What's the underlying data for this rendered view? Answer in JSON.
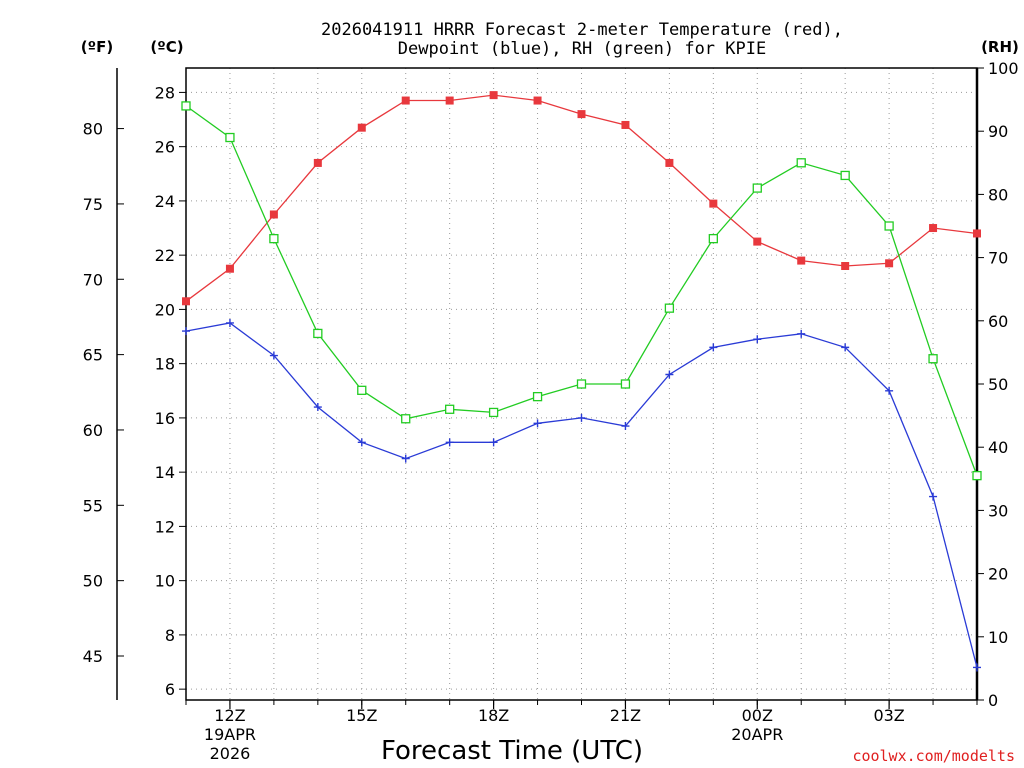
{
  "chart_data": {
    "type": "line",
    "title_line1": "2026041911 HRRR Forecast 2-meter Temperature (red),",
    "title_line2": "Dewpoint (blue), RH (green) for KPIE",
    "xlabel": "Forecast Time (UTC)",
    "credit": "coolwx.com/modelts",
    "units": {
      "fahrenheit": "(ºF)",
      "celsius": "(ºC)",
      "rh": "(RH)"
    },
    "x": [
      11,
      12,
      13,
      14,
      15,
      16,
      17,
      18,
      19,
      20,
      21,
      22,
      23,
      24,
      25,
      26,
      27,
      28,
      29
    ],
    "xlim": [
      11,
      29
    ],
    "x_ticks": [
      {
        "x": 12,
        "label": "12Z",
        "sub1": "19APR",
        "sub2": "2026"
      },
      {
        "x": 15,
        "label": "15Z",
        "sub1": "",
        "sub2": ""
      },
      {
        "x": 18,
        "label": "18Z",
        "sub1": "",
        "sub2": ""
      },
      {
        "x": 21,
        "label": "21Z",
        "sub1": "",
        "sub2": ""
      },
      {
        "x": 24,
        "label": "00Z",
        "sub1": "20APR",
        "sub2": ""
      },
      {
        "x": 27,
        "label": "03Z",
        "sub1": "",
        "sub2": ""
      }
    ],
    "y_celsius": {
      "lim": [
        5.6,
        28.9
      ],
      "ticks": [
        6,
        8,
        10,
        12,
        14,
        16,
        18,
        20,
        22,
        24,
        26,
        28
      ]
    },
    "y_fahrenheit": {
      "ticks": [
        45,
        50,
        55,
        60,
        65,
        70,
        75,
        80
      ]
    },
    "y_rh": {
      "lim": [
        0,
        100
      ],
      "ticks": [
        0,
        10,
        20,
        30,
        40,
        50,
        60,
        70,
        80,
        90,
        100
      ]
    },
    "series": [
      {
        "name": "Temperature",
        "color": "#e8383d",
        "marker": "filled-square",
        "axis": "celsius",
        "values": [
          20.3,
          21.5,
          23.5,
          25.4,
          26.7,
          27.7,
          27.7,
          27.9,
          27.7,
          27.2,
          26.8,
          25.4,
          23.9,
          22.5,
          21.8,
          21.6,
          21.7,
          23.0,
          22.8
        ]
      },
      {
        "name": "Dewpoint",
        "color": "#2a3bd6",
        "marker": "plus",
        "axis": "celsius",
        "values": [
          19.2,
          19.5,
          18.3,
          16.4,
          15.1,
          14.5,
          15.1,
          15.1,
          15.8,
          16.0,
          15.7,
          17.6,
          18.6,
          18.9,
          19.1,
          18.6,
          17.0,
          13.1,
          6.8
        ]
      },
      {
        "name": "RH",
        "color": "#22cc22",
        "marker": "open-square",
        "axis": "rh",
        "values": [
          94,
          89,
          73,
          58,
          49,
          44.5,
          46,
          45.5,
          48,
          50,
          50,
          62,
          73,
          81,
          85,
          83,
          75,
          54,
          35.5
        ]
      }
    ]
  }
}
